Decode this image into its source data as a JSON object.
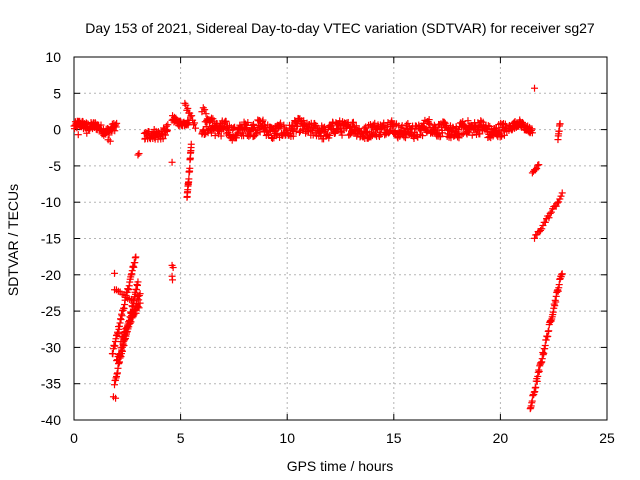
{
  "chart_data": {
    "type": "scatter",
    "title": "Day 153 of 2021, Sidereal Day-to-day VTEC variation (SDTVAR) for receiver sg27",
    "xlabel": "GPS time / hours",
    "ylabel": "SDTVAR / TECUs",
    "xlim": [
      0,
      25
    ],
    "ylim": [
      -40,
      10
    ],
    "xticks": [
      0,
      5,
      10,
      15,
      20,
      25
    ],
    "yticks": [
      10,
      5,
      0,
      -5,
      -10,
      -15,
      -20,
      -25,
      -30,
      -35,
      -40
    ],
    "grid": true,
    "marker": "+",
    "series_color": "#ff0000",
    "series": [
      {
        "name": "SDTVAR",
        "segments": [
          {
            "kind": "band",
            "x": [
              0.0,
              2.0
            ],
            "y_center": 0.3,
            "spread": 1.2
          },
          {
            "kind": "points",
            "points": [
              [
                0.2,
                -0.7
              ],
              [
                0.6,
                -0.5
              ],
              [
                1.6,
                -1.4
              ],
              [
                1.7,
                -1.6
              ],
              [
                3.0,
                -3.5
              ],
              [
                3.05,
                -3.3
              ],
              [
                4.6,
                -4.5
              ],
              [
                21.6,
                5.7
              ]
            ]
          },
          {
            "kind": "line",
            "x": [
              1.8,
              2.9
            ],
            "y": [
              -31.0,
              -17.5
            ],
            "spread": 0.8
          },
          {
            "kind": "line",
            "x": [
              1.9,
              3.0
            ],
            "y": [
              -35.0,
              -21.0
            ],
            "spread": 0.8
          },
          {
            "kind": "line",
            "x": [
              2.0,
              3.1
            ],
            "y": [
              -32.0,
              -22.5
            ],
            "spread": 0.8
          },
          {
            "kind": "line",
            "x": [
              2.2,
              3.1
            ],
            "y": [
              -29.0,
              -24.0
            ],
            "spread": 0.6
          },
          {
            "kind": "line",
            "x": [
              1.9,
              2.7
            ],
            "y": [
              -22.0,
              -23.5
            ],
            "spread": 0.3
          },
          {
            "kind": "points",
            "points": [
              [
                1.9,
                -19.8
              ],
              [
                1.85,
                -36.8
              ],
              [
                1.95,
                -37.0
              ],
              [
                4.6,
                -18.7
              ],
              [
                4.65,
                -19.0
              ],
              [
                4.6,
                -20.2
              ],
              [
                4.62,
                -20.7
              ]
            ]
          },
          {
            "kind": "band",
            "x": [
              3.3,
              4.4
            ],
            "y_center": -0.5,
            "spread": 1.5
          },
          {
            "kind": "line",
            "x": [
              5.3,
              5.5
            ],
            "y": [
              -9.5,
              -2.5
            ],
            "spread": 1.0
          },
          {
            "kind": "line",
            "x": [
              5.2,
              5.7
            ],
            "y": [
              3.5,
              0.5
            ],
            "spread": 0.8
          },
          {
            "kind": "band",
            "x": [
              4.6,
              5.4
            ],
            "y_center": 1.0,
            "spread": 0.8
          },
          {
            "kind": "line",
            "x": [
              6.0,
              6.9
            ],
            "y": [
              3.0,
              -0.3
            ],
            "spread": 1.2
          },
          {
            "kind": "band",
            "x": [
              6.0,
              20.3
            ],
            "y_center": 0.0,
            "spread": 2.0
          },
          {
            "kind": "band",
            "x": [
              20.4,
              21.3
            ],
            "y_center": 0.3,
            "spread": 1.0
          },
          {
            "kind": "line",
            "x": [
              21.5,
              21.8
            ],
            "y": [
              -6.2,
              -4.8
            ],
            "spread": 0.5
          },
          {
            "kind": "line",
            "x": [
              21.6,
              22.9
            ],
            "y": [
              -15.0,
              -9.0
            ],
            "spread": 0.6
          },
          {
            "kind": "line",
            "x": [
              21.4,
              22.9
            ],
            "y": [
              -38.5,
              -19.5
            ],
            "spread": 0.8
          },
          {
            "kind": "band",
            "x": [
              21.3,
              21.5
            ],
            "y_center": 0.2,
            "spread": 1.0
          },
          {
            "kind": "line",
            "x": [
              22.7,
              22.8
            ],
            "y": [
              -1.2,
              0.9
            ],
            "spread": 0.5
          }
        ]
      }
    ]
  }
}
